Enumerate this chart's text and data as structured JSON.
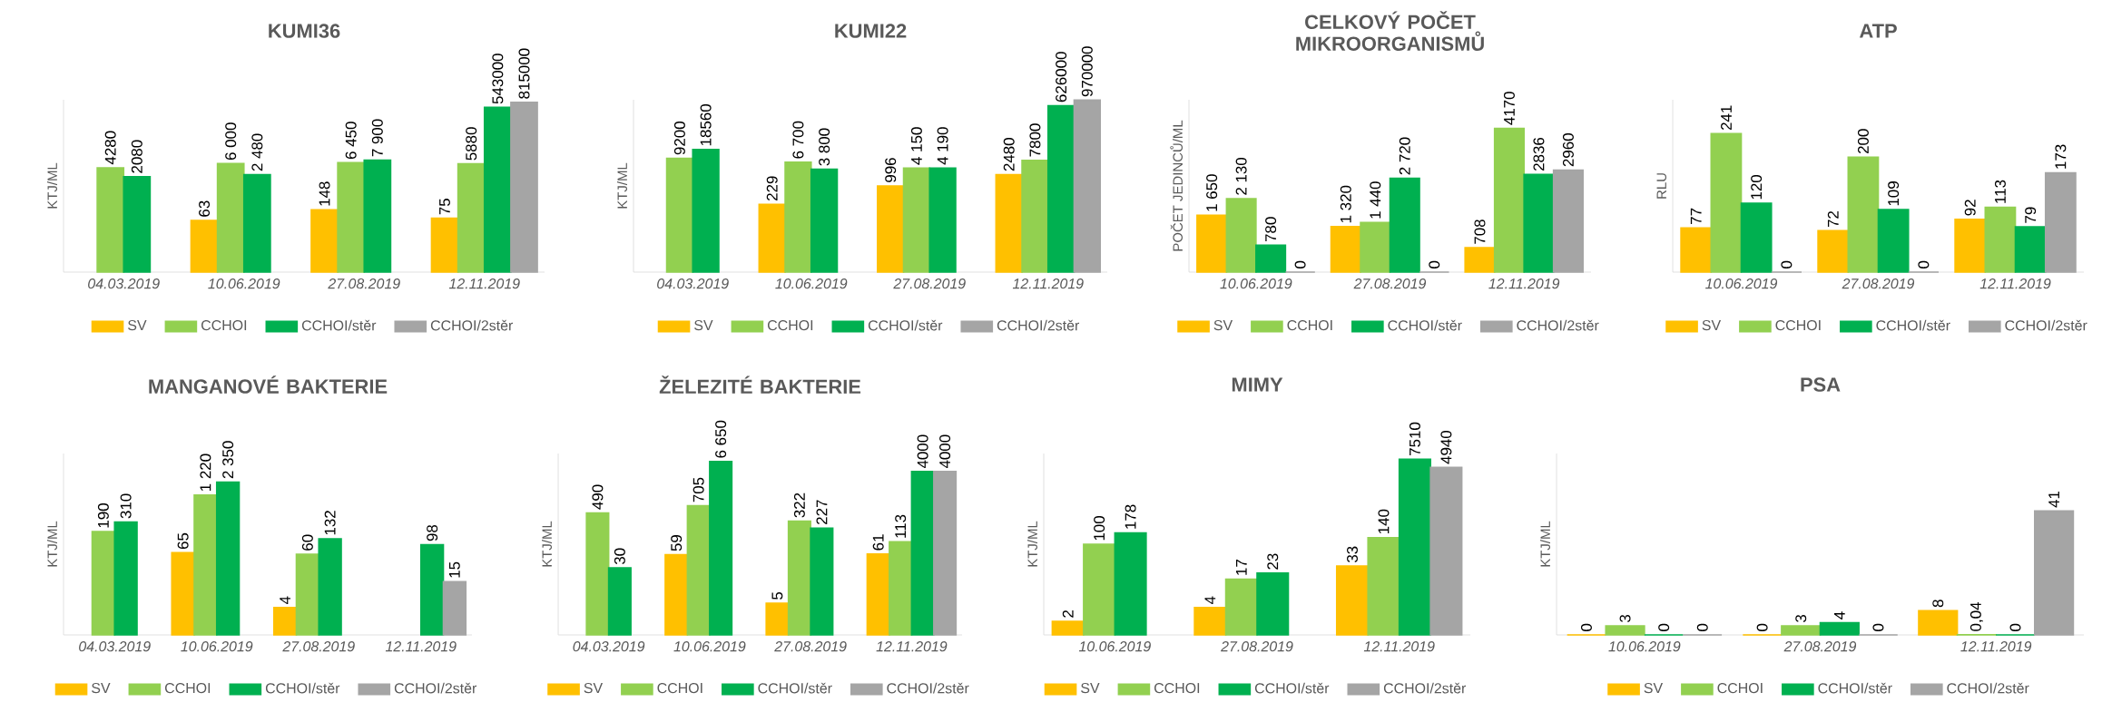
{
  "chart_data": [
    {
      "type": "bar",
      "title": "KUMI36",
      "ylabel": "KTJ/ML",
      "log": true,
      "ylim": [
        1,
        1000000
      ],
      "tick_labels": "x",
      "legend": "bottom",
      "categories": [
        "04.03.2019",
        "10.06.2019",
        "27.08.2019",
        "12.11.2019"
      ],
      "series": [
        {
          "name": "SV",
          "color": "#ffc000",
          "values": [
            null,
            63,
            148,
            75
          ],
          "value_labels": [
            null,
            "63",
            "148",
            "75"
          ]
        },
        {
          "name": "CCHOI",
          "color": "#92d050",
          "values": [
            4280,
            6000,
            6450,
            5880
          ],
          "value_labels": [
            "4280",
            "6 000",
            "6 450",
            "5880"
          ]
        },
        {
          "name": "CCHOI/stěr",
          "color": "#00b050",
          "values": [
            2080,
            2480,
            7900,
            543000
          ],
          "value_labels": [
            "2080",
            "2 480",
            "7 900",
            "543000"
          ]
        },
        {
          "name": "CCHOI/2stěr",
          "color": "#a5a5a5",
          "values": [
            null,
            null,
            null,
            815000
          ],
          "value_labels": [
            null,
            null,
            null,
            "815000"
          ]
        }
      ]
    },
    {
      "type": "bar",
      "title": "KUMI22",
      "ylabel": "KTJ/ML",
      "log": true,
      "ylim": [
        1,
        1000000
      ],
      "tick_labels": "x",
      "legend": "bottom",
      "categories": [
        "04.03.2019",
        "10.06.2019",
        "27.08.2019",
        "12.11.2019"
      ],
      "series": [
        {
          "name": "SV",
          "color": "#ffc000",
          "values": [
            null,
            229,
            996,
            2480
          ],
          "value_labels": [
            null,
            "229",
            "996",
            "2480"
          ]
        },
        {
          "name": "CCHOI",
          "color": "#92d050",
          "values": [
            9200,
            6700,
            4150,
            7800
          ],
          "value_labels": [
            "9200",
            "6 700",
            "4 150",
            "7800"
          ]
        },
        {
          "name": "CCHOI/stěr",
          "color": "#00b050",
          "values": [
            18560,
            3800,
            4190,
            626000
          ],
          "value_labels": [
            "18560",
            "3 800",
            "4 190",
            "626000"
          ]
        },
        {
          "name": "CCHOI/2stěr",
          "color": "#a5a5a5",
          "values": [
            null,
            null,
            null,
            970000
          ],
          "value_labels": [
            null,
            null,
            null,
            "970000"
          ]
        }
      ]
    },
    {
      "type": "bar",
      "title": "CELKOVÝ POČET MIKROORGANISMŮ",
      "ylabel": "POČET JEDINCŮ/ML",
      "ylim": [
        0,
        5000
      ],
      "tick_labels": "x",
      "legend": "bottom",
      "categories": [
        "10.06.2019",
        "27.08.2019",
        "12.11.2019"
      ],
      "series": [
        {
          "name": "SV",
          "color": "#ffc000",
          "values": [
            1650,
            1320,
            708
          ],
          "value_labels": [
            "1 650",
            "1 320",
            "708"
          ]
        },
        {
          "name": "CCHOI",
          "color": "#92d050",
          "values": [
            2130,
            1440,
            4170
          ],
          "value_labels": [
            "2 130",
            "1 440",
            "4170"
          ]
        },
        {
          "name": "CCHOI/stěr",
          "color": "#00b050",
          "values": [
            780,
            2720,
            2836
          ],
          "value_labels": [
            "780",
            "2 720",
            "2836"
          ]
        },
        {
          "name": "CCHOI/2stěr",
          "color": "#a5a5a5",
          "values": [
            0,
            0,
            2960
          ],
          "value_labels": [
            "0",
            "0",
            "2960"
          ]
        }
      ]
    },
    {
      "type": "bar",
      "title": "ATP",
      "ylabel": "RLU",
      "ylim": [
        0,
        300
      ],
      "tick_labels": "x",
      "legend": "bottom",
      "categories": [
        "10.06.2019",
        "27.08.2019",
        "12.11.2019"
      ],
      "series": [
        {
          "name": "SV",
          "color": "#ffc000",
          "values": [
            77,
            72,
            92
          ],
          "value_labels": [
            "77",
            "72",
            "92"
          ]
        },
        {
          "name": "CCHOI",
          "color": "#92d050",
          "values": [
            241,
            200,
            113
          ],
          "value_labels": [
            "241",
            "200",
            "113"
          ]
        },
        {
          "name": "CCHOI/stěr",
          "color": "#00b050",
          "values": [
            120,
            109,
            79
          ],
          "value_labels": [
            "120",
            "109",
            "79"
          ]
        },
        {
          "name": "CCHOI/2stěr",
          "color": "#a5a5a5",
          "values": [
            0,
            0,
            173
          ],
          "value_labels": [
            "0",
            "0",
            "173"
          ]
        }
      ]
    },
    {
      "type": "bar",
      "title": "MANGANOVÉ BAKTERIE",
      "ylabel": "KTJ/ML",
      "log": true,
      "ylim": [
        1,
        10000
      ],
      "tick_labels": "x",
      "legend": "bottom",
      "categories": [
        "04.03.2019",
        "10.06.2019",
        "27.08.2019",
        "12.11.2019"
      ],
      "series": [
        {
          "name": "SV",
          "color": "#ffc000",
          "values": [
            null,
            65,
            4,
            null
          ],
          "value_labels": [
            null,
            "65",
            "4",
            null
          ]
        },
        {
          "name": "CCHOI",
          "color": "#92d050",
          "values": [
            190,
            1220,
            60,
            null
          ],
          "value_labels": [
            "190",
            "1 220",
            "60",
            null
          ]
        },
        {
          "name": "CCHOI/stěr",
          "color": "#00b050",
          "values": [
            310,
            2350,
            132,
            98
          ],
          "value_labels": [
            "310",
            "2 350",
            "132",
            "98"
          ]
        },
        {
          "name": "CCHOI/2stěr",
          "color": "#a5a5a5",
          "values": [
            null,
            null,
            null,
            15
          ],
          "value_labels": [
            null,
            null,
            null,
            "15"
          ]
        }
      ]
    },
    {
      "type": "bar",
      "title": "ŽELEZITÉ BAKTERIE",
      "ylabel": "KTJ/ML",
      "log": true,
      "ylim": [
        1,
        10000
      ],
      "tick_labels": "x",
      "legend": "bottom",
      "categories": [
        "04.03.2019",
        "10.06.2019",
        "27.08.2019",
        "12.11.2019"
      ],
      "series": [
        {
          "name": "SV",
          "color": "#ffc000",
          "values": [
            null,
            59,
            5,
            61
          ],
          "value_labels": [
            null,
            "59",
            "5",
            "61"
          ]
        },
        {
          "name": "CCHOI",
          "color": "#92d050",
          "values": [
            490,
            705,
            322,
            113
          ],
          "value_labels": [
            "490",
            "705",
            "322",
            "113"
          ]
        },
        {
          "name": "CCHOI/stěr",
          "color": "#00b050",
          "values": [
            30,
            6650,
            227,
            4000
          ],
          "value_labels": [
            "30",
            "6 650",
            "227",
            "4000"
          ]
        },
        {
          "name": "CCHOI/2stěr",
          "color": "#a5a5a5",
          "values": [
            null,
            null,
            null,
            4000
          ],
          "value_labels": [
            null,
            null,
            null,
            "4000"
          ]
        }
      ]
    },
    {
      "type": "bar",
      "title": "MIMY",
      "ylabel": "KTJ/ML",
      "log": true,
      "ylim": [
        1,
        10000
      ],
      "tick_labels": "x",
      "legend": "bottom",
      "categories": [
        "10.06.2019",
        "27.08.2019",
        "12.11.2019"
      ],
      "series": [
        {
          "name": "SV",
          "color": "#ffc000",
          "values": [
            2,
            4,
            33
          ],
          "value_labels": [
            "2",
            "4",
            "33"
          ]
        },
        {
          "name": "CCHOI",
          "color": "#92d050",
          "values": [
            100,
            17,
            140
          ],
          "value_labels": [
            "100",
            "17",
            "140"
          ]
        },
        {
          "name": "CCHOI/stěr",
          "color": "#00b050",
          "values": [
            178,
            23,
            7510
          ],
          "value_labels": [
            "178",
            "23",
            "7510"
          ]
        },
        {
          "name": "CCHOI/2stěr",
          "color": "#a5a5a5",
          "values": [
            null,
            null,
            4940
          ],
          "value_labels": [
            null,
            null,
            "4940"
          ]
        }
      ]
    },
    {
      "type": "bar",
      "title": "PSA",
      "ylabel": "KTJ/ML",
      "ylim": [
        0,
        60
      ],
      "tick_labels": "x",
      "legend": "bottom",
      "categories": [
        "10.06.2019",
        "27.08.2019",
        "12.11.2019"
      ],
      "series": [
        {
          "name": "SV",
          "color": "#ffc000",
          "values": [
            0,
            0,
            8
          ],
          "value_labels": [
            "0",
            "0",
            "8"
          ]
        },
        {
          "name": "CCHOI",
          "color": "#92d050",
          "values": [
            3,
            3,
            0.04
          ],
          "value_labels": [
            "3",
            "3",
            "0,04"
          ]
        },
        {
          "name": "CCHOI/stěr",
          "color": "#00b050",
          "values": [
            0,
            4,
            0
          ],
          "value_labels": [
            "0",
            "4",
            "0"
          ]
        },
        {
          "name": "CCHOI/2stěr",
          "color": "#a5a5a5",
          "values": [
            0,
            0,
            41
          ],
          "value_labels": [
            "0",
            "0",
            "41"
          ]
        }
      ]
    }
  ]
}
